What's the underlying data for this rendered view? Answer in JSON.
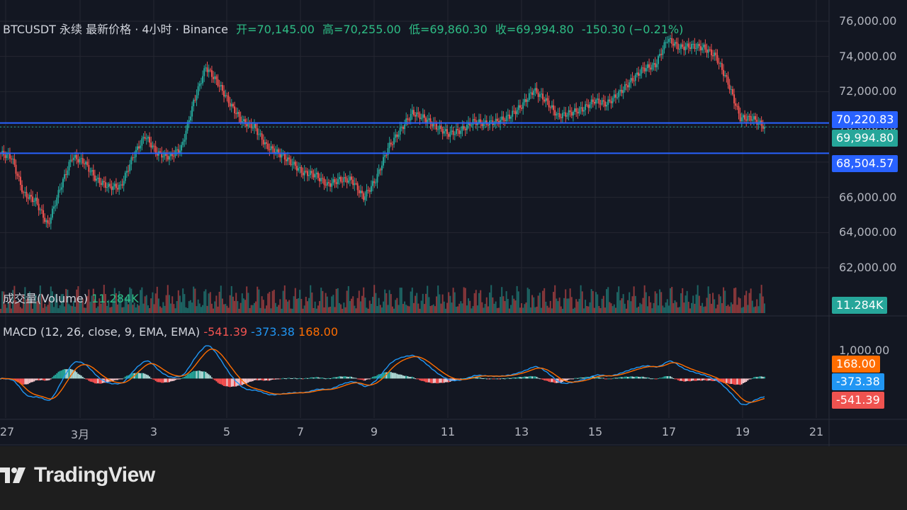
{
  "header": {
    "symbol": "BTCUSDT 永续 最新价格 · 4小时 · Binance",
    "open": "开=70,145.00",
    "high": "高=70,255.00",
    "low": "低=69,860.30",
    "close": "收=69,994.80",
    "change": "-150.30 (−0.21%)"
  },
  "volume_panel": {
    "label": "成交量(Volume)",
    "value": "11.284K",
    "tag": "11.284K"
  },
  "macd_panel": {
    "label": "MACD (12, 26, close, 9, EMA, EMA)",
    "histogram": "-541.39",
    "macd": "-373.38",
    "signal": "168.00"
  },
  "price_tags": {
    "upper_line": "70,220.83",
    "last": "69,994.80",
    "lower_line": "68,504.57"
  },
  "macd_tags": {
    "signal": "168.00",
    "macd": "-373.38",
    "histogram": "-541.39"
  },
  "brand": "TradingView",
  "colors": {
    "background": "#131722",
    "up": "#26a69a",
    "down": "#ef5350",
    "hline": "#2962ff",
    "macd_line": "#2196f3",
    "signal_line": "#ff6d00"
  },
  "chart_data": {
    "type": "candlestick",
    "interval": "4h",
    "price_axis": {
      "ticks": [
        "62,000.00",
        "64,000.00",
        "66,000.00",
        "68,000.00",
        "70,000.00",
        "72,000.00",
        "74,000.00",
        "76,000.00"
      ],
      "tick_values": [
        62000,
        64000,
        66000,
        68000,
        70000,
        72000,
        74000,
        76000
      ],
      "ylim": [
        61600,
        76400
      ]
    },
    "macd_axis": {
      "ticks": [
        "1,000.00"
      ],
      "tick_values": [
        1000
      ],
      "ylim": [
        -1400,
        2000
      ]
    },
    "x_ticks": [
      "27",
      "3月",
      "3",
      "5",
      "7",
      "9",
      "11",
      "13",
      "15",
      "17",
      "19",
      "21"
    ],
    "horizontal_lines": [
      70220.83,
      68504.57
    ],
    "last_price": 69994.8,
    "close_path": [
      68500,
      68300,
      66200,
      65800,
      64400,
      66500,
      68300,
      68000,
      67000,
      66600,
      66600,
      68300,
      69500,
      68500,
      68300,
      68800,
      71400,
      73400,
      72500,
      71300,
      70300,
      70000,
      68900,
      68500,
      68000,
      67400,
      67300,
      66700,
      67000,
      67000,
      66000,
      67000,
      68800,
      69800,
      70800,
      70500,
      70000,
      69600,
      69800,
      70300,
      70200,
      70300,
      70600,
      71200,
      72100,
      71500,
      70600,
      70800,
      71000,
      71500,
      71300,
      71900,
      72600,
      73300,
      73500,
      75000,
      74500,
      74600,
      74500,
      74000,
      72500,
      70500,
      70500,
      69995
    ],
    "volume_last": 11284,
    "macd_last": {
      "macd": -373.38,
      "signal": 168.0,
      "histogram": -541.39
    }
  }
}
